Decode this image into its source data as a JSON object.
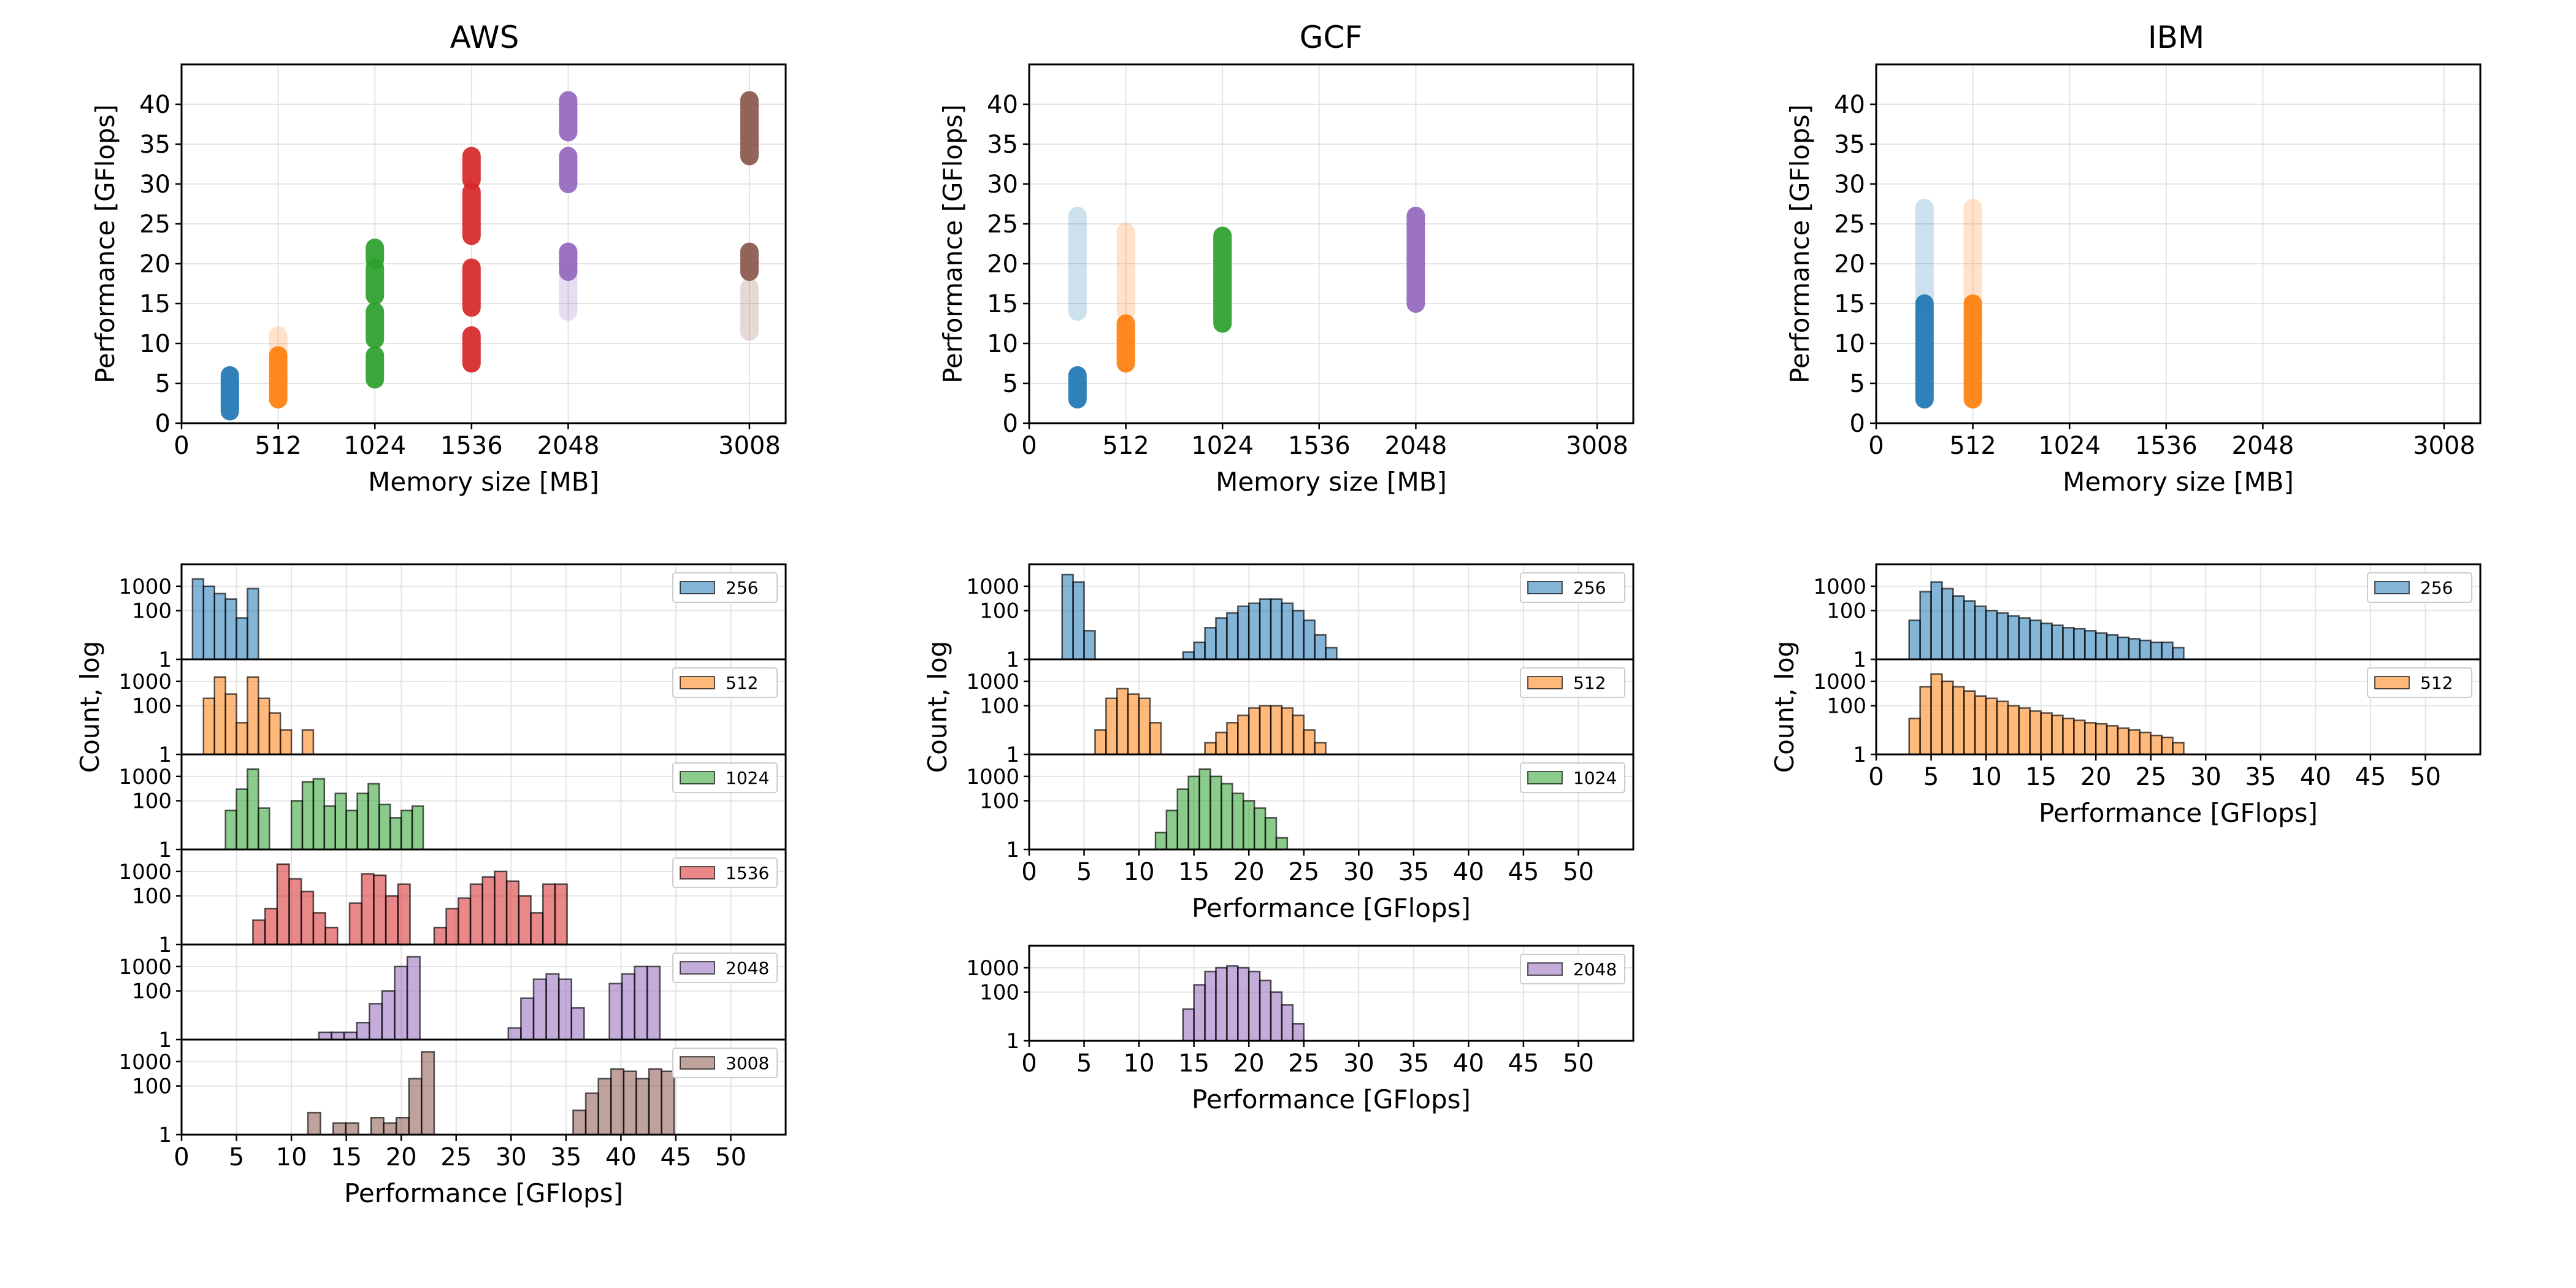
{
  "colors": {
    "256": "#1f77b4",
    "512": "#ff7f0e",
    "1024": "#2ca02c",
    "1536": "#d62728",
    "2048": "#9467bd",
    "3008": "#8c564b"
  },
  "labels": {
    "scatter_xlabel": "Memory size [MB]",
    "scatter_ylabel": "Performance [GFlops]",
    "hist_xlabel": "Performance [GFlops]",
    "hist_ylabel": "Count, log"
  },
  "chart_data": {
    "type": "scatter+histogram",
    "scatter_axes": {
      "x_ticks": [
        0,
        512,
        1024,
        1536,
        2048,
        3008
      ],
      "xlim": [
        0,
        3200
      ],
      "y_ticks": [
        0,
        5,
        10,
        15,
        20,
        25,
        30,
        35,
        40
      ],
      "ylim": [
        0,
        45
      ]
    },
    "hist_axes": {
      "x_ticks": [
        0,
        5,
        10,
        15,
        20,
        25,
        30,
        35,
        40,
        45,
        50
      ],
      "xlim": [
        0,
        55
      ],
      "y_ticks": [
        1,
        100,
        1000
      ],
      "y_scale": "log"
    },
    "providers": [
      {
        "name": "AWS",
        "scatter": [
          {
            "memory": 256,
            "clusters": [
              [
                1.5,
                6
              ]
            ]
          },
          {
            "memory": 512,
            "clusters": [
              [
                3,
                8.5
              ],
              [
                8.5,
                11,
                "faint"
              ]
            ]
          },
          {
            "memory": 1024,
            "clusters": [
              [
                5.5,
                8.5
              ],
              [
                10.5,
                14
              ],
              [
                16,
                19.5
              ],
              [
                20.5,
                22
              ]
            ]
          },
          {
            "memory": 1536,
            "clusters": [
              [
                7.5,
                11
              ],
              [
                14.5,
                19.5
              ],
              [
                23.5,
                29
              ],
              [
                30.5,
                33.5
              ]
            ]
          },
          {
            "memory": 2048,
            "clusters": [
              [
                14,
                19,
                "faint"
              ],
              [
                19,
                21.5
              ],
              [
                30,
                33.5
              ],
              [
                36.5,
                40.5
              ]
            ]
          },
          {
            "memory": 3008,
            "clusters": [
              [
                11.5,
                17,
                "faint"
              ],
              [
                19,
                21.5
              ],
              [
                33.5,
                40.5
              ]
            ]
          }
        ],
        "histograms": [
          {
            "memory": "256",
            "bin_start": 1,
            "bin_width": 1,
            "counts": [
              2000,
              1000,
              500,
              300,
              50,
              800
            ]
          },
          {
            "memory": "512",
            "bin_start": 2,
            "bin_width": 1,
            "counts": [
              200,
              1500,
              300,
              20,
              1500,
              200,
              50,
              10,
              0,
              10
            ]
          },
          {
            "memory": "1024",
            "bin_start": 4,
            "bin_width": 1,
            "counts": [
              40,
              300,
              2000,
              50,
              0,
              0,
              100,
              600,
              800,
              60,
              200,
              40,
              200,
              500,
              70,
              20,
              40,
              60
            ]
          },
          {
            "memory": "1536",
            "bin_start": 6.5,
            "bin_width": 1.1,
            "counts": [
              10,
              30,
              2000,
              500,
              150,
              20,
              5,
              0,
              50,
              800,
              700,
              100,
              300,
              0,
              0,
              5,
              30,
              80,
              300,
              600,
              1000,
              400,
              100,
              20,
              300,
              300
            ]
          },
          {
            "memory": "2048",
            "bin_start": 12.5,
            "bin_width": 1.15,
            "counts": [
              2,
              2,
              2,
              5,
              30,
              100,
              1000,
              2500,
              0,
              0,
              0,
              0,
              0,
              0,
              0,
              3,
              50,
              300,
              500,
              300,
              20,
              0,
              0,
              200,
              500,
              1000,
              1000
            ]
          },
          {
            "memory": "3008",
            "bin_start": 11.5,
            "bin_width": 1.15,
            "counts": [
              8,
              0,
              3,
              3,
              0,
              5,
              3,
              5,
              200,
              2500,
              0,
              0,
              0,
              0,
              0,
              0,
              0,
              0,
              0,
              0,
              0,
              10,
              50,
              200,
              500,
              400,
              200,
              500,
              400
            ]
          }
        ]
      },
      {
        "name": "GCF",
        "scatter": [
          {
            "memory": 256,
            "clusters": [
              [
                3,
                6
              ],
              [
                14,
                26,
                "faint"
              ]
            ]
          },
          {
            "memory": 512,
            "clusters": [
              [
                7.5,
                12.5
              ],
              [
                14,
                24,
                "faint"
              ]
            ]
          },
          {
            "memory": 1024,
            "clusters": [
              [
                12.5,
                23.5
              ]
            ]
          },
          {
            "memory": 2048,
            "clusters": [
              [
                15,
                26
              ]
            ]
          }
        ],
        "histograms": [
          {
            "memory": "256",
            "bin_start": 3,
            "bin_width": 1,
            "counts": [
              3000,
              1500,
              15,
              0,
              0,
              0,
              0,
              0,
              0,
              0,
              0,
              2,
              5,
              20,
              50,
              80,
              150,
              200,
              300,
              300,
              200,
              100,
              40,
              10,
              3
            ]
          },
          {
            "memory": "512",
            "bin_start": 6,
            "bin_width": 1,
            "counts": [
              10,
              200,
              500,
              300,
              200,
              20,
              0,
              0,
              0,
              0,
              3,
              8,
              20,
              40,
              80,
              100,
              100,
              80,
              40,
              10,
              3
            ]
          },
          {
            "memory": "1024",
            "bin_start": 11.5,
            "bin_width": 1,
            "counts": [
              5,
              40,
              300,
              1000,
              2000,
              1000,
              500,
              200,
              100,
              50,
              20,
              3
            ]
          },
          {
            "memory": "2048",
            "bin_start": 14,
            "bin_width": 1,
            "counts": [
              20,
              200,
              700,
              1000,
              1200,
              1000,
              700,
              300,
              100,
              30,
              5,
              1
            ]
          }
        ]
      },
      {
        "name": "IBM",
        "scatter": [
          {
            "memory": 256,
            "clusters": [
              [
                3,
                15
              ],
              [
                15,
                27,
                "faint"
              ]
            ]
          },
          {
            "memory": 512,
            "clusters": [
              [
                3,
                15
              ],
              [
                15,
                27,
                "faint"
              ]
            ]
          }
        ],
        "histograms": [
          {
            "memory": "256",
            "bin_start": 3,
            "bin_width": 1,
            "counts": [
              40,
              600,
              1500,
              800,
              400,
              250,
              150,
              100,
              80,
              60,
              50,
              40,
              30,
              25,
              20,
              18,
              15,
              12,
              10,
              8,
              7,
              6,
              5,
              5,
              3
            ]
          },
          {
            "memory": "512",
            "bin_start": 3,
            "bin_width": 1,
            "counts": [
              30,
              600,
              2000,
              1000,
              600,
              400,
              250,
              200,
              150,
              100,
              80,
              60,
              50,
              40,
              30,
              25,
              20,
              18,
              15,
              12,
              10,
              8,
              6,
              5,
              3
            ]
          }
        ]
      }
    ]
  }
}
